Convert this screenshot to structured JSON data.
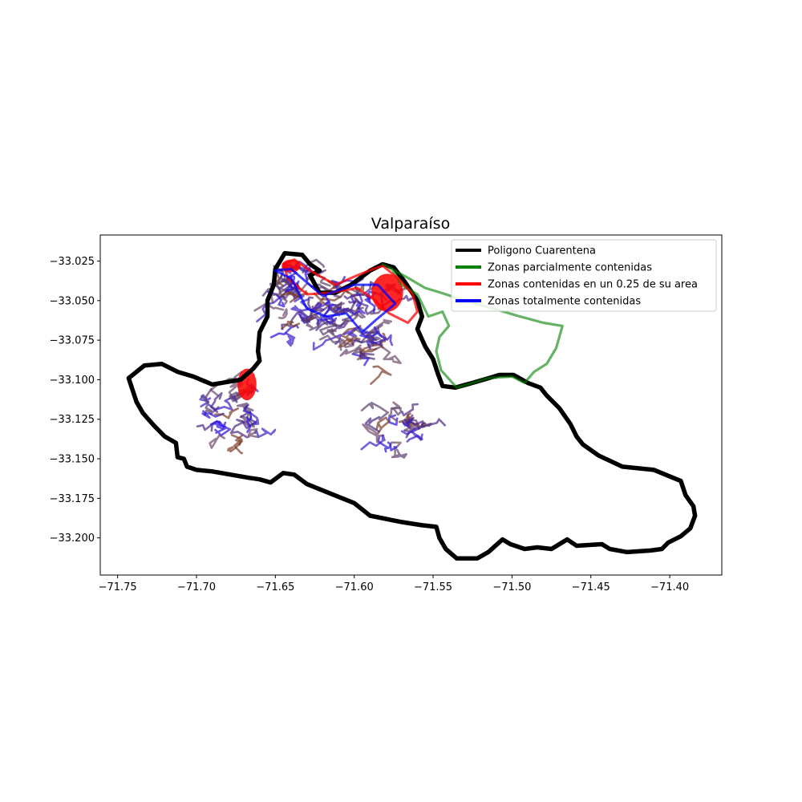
{
  "chart_data": {
    "type": "map",
    "title": "Valparaíso",
    "xlabel": "",
    "ylabel": "",
    "xlim": [
      -71.761,
      -71.367
    ],
    "ylim": [
      -33.2235,
      -33.0085
    ],
    "x_ticks": [
      -71.75,
      -71.7,
      -71.65,
      -71.6,
      -71.55,
      -71.5,
      -71.45,
      -71.4
    ],
    "x_tick_labels": [
      "−71.75",
      "−71.70",
      "−71.65",
      "−71.60",
      "−71.55",
      "−71.50",
      "−71.45",
      "−71.40"
    ],
    "y_ticks": [
      -33.025,
      -33.05,
      -33.075,
      -33.1,
      -33.125,
      -33.15,
      -33.175,
      -33.2
    ],
    "y_tick_labels": [
      "−33.025",
      "−33.050",
      "−33.075",
      "−33.100",
      "−33.125",
      "−33.150",
      "−33.175",
      "−33.200"
    ],
    "grid": false,
    "legend_position": "top-right",
    "legend": [
      {
        "label": "Poligono Cuarentena",
        "color": "#000000"
      },
      {
        "label": "Zonas parcialmente contenidas",
        "color": "#008000"
      },
      {
        "label": "Zonas contenidas en un 0.25 de su area",
        "color": "#ff0000"
      },
      {
        "label": "Zonas totalmente contenidas",
        "color": "#0000ff"
      }
    ],
    "series": [
      {
        "name": "Poligono Cuarentena",
        "color": "#000000",
        "points": [
          [
            -71.644,
            -33.02
          ],
          [
            -71.633,
            -33.021
          ],
          [
            -71.628,
            -33.027
          ],
          [
            -71.622,
            -33.031
          ],
          [
            -71.628,
            -33.034
          ],
          [
            -71.622,
            -33.045
          ],
          [
            -71.612,
            -33.045
          ],
          [
            -71.602,
            -33.04
          ],
          [
            -71.59,
            -33.031
          ],
          [
            -71.582,
            -33.027
          ],
          [
            -71.575,
            -33.029
          ],
          [
            -71.568,
            -33.038
          ],
          [
            -71.56,
            -33.05
          ],
          [
            -71.557,
            -33.06
          ],
          [
            -71.56,
            -33.068
          ],
          [
            -71.555,
            -33.079
          ],
          [
            -71.55,
            -33.087
          ],
          [
            -71.547,
            -33.096
          ],
          [
            -71.544,
            -33.104
          ],
          [
            -71.536,
            -33.105
          ],
          [
            -71.525,
            -33.102
          ],
          [
            -71.518,
            -33.1
          ],
          [
            -71.508,
            -33.097
          ],
          [
            -71.499,
            -33.097
          ],
          [
            -71.49,
            -33.102
          ],
          [
            -71.482,
            -33.105
          ],
          [
            -71.478,
            -33.11
          ],
          [
            -71.47,
            -33.118
          ],
          [
            -71.463,
            -33.128
          ],
          [
            -71.459,
            -33.136
          ],
          [
            -71.455,
            -33.141
          ],
          [
            -71.445,
            -33.148
          ],
          [
            -71.43,
            -33.155
          ],
          [
            -71.41,
            -33.157
          ],
          [
            -71.393,
            -33.164
          ],
          [
            -71.39,
            -33.173
          ],
          [
            -71.385,
            -33.18
          ],
          [
            -71.384,
            -33.186
          ],
          [
            -71.387,
            -33.194
          ],
          [
            -71.393,
            -33.199
          ],
          [
            -71.401,
            -33.203
          ],
          [
            -71.405,
            -33.207
          ],
          [
            -71.412,
            -33.208
          ],
          [
            -71.427,
            -33.209
          ],
          [
            -71.438,
            -33.207
          ],
          [
            -71.443,
            -33.204
          ],
          [
            -71.459,
            -33.205
          ],
          [
            -71.465,
            -33.201
          ],
          [
            -71.475,
            -33.207
          ],
          [
            -71.484,
            -33.206
          ],
          [
            -71.492,
            -33.207
          ],
          [
            -71.501,
            -33.204
          ],
          [
            -71.506,
            -33.201
          ],
          [
            -71.515,
            -33.209
          ],
          [
            -71.522,
            -33.213
          ],
          [
            -71.535,
            -33.213
          ],
          [
            -71.542,
            -33.207
          ],
          [
            -71.546,
            -33.2
          ],
          [
            -71.548,
            -33.193
          ],
          [
            -71.557,
            -33.192
          ],
          [
            -71.57,
            -33.19
          ],
          [
            -71.59,
            -33.186
          ],
          [
            -71.6,
            -33.178
          ],
          [
            -71.61,
            -33.174
          ],
          [
            -71.63,
            -33.166
          ],
          [
            -71.638,
            -33.16
          ],
          [
            -71.645,
            -33.159
          ],
          [
            -71.653,
            -33.165
          ],
          [
            -71.66,
            -33.163
          ],
          [
            -71.667,
            -33.162
          ],
          [
            -71.69,
            -33.158
          ],
          [
            -71.7,
            -33.157
          ],
          [
            -71.706,
            -33.155
          ],
          [
            -71.708,
            -33.15
          ],
          [
            -71.712,
            -33.149
          ],
          [
            -71.713,
            -33.14
          ],
          [
            -71.72,
            -33.136
          ],
          [
            -71.727,
            -33.129
          ],
          [
            -71.734,
            -33.121
          ],
          [
            -71.738,
            -33.114
          ],
          [
            -71.741,
            -33.105
          ],
          [
            -71.743,
            -33.099
          ],
          [
            -71.733,
            -33.091
          ],
          [
            -71.722,
            -33.09
          ],
          [
            -71.712,
            -33.095
          ],
          [
            -71.702,
            -33.098
          ],
          [
            -71.69,
            -33.103
          ],
          [
            -71.672,
            -33.1
          ],
          [
            -71.664,
            -33.093
          ],
          [
            -71.66,
            -33.088
          ],
          [
            -71.661,
            -33.082
          ],
          [
            -71.66,
            -33.07
          ],
          [
            -71.655,
            -33.06
          ],
          [
            -71.655,
            -33.05
          ],
          [
            -71.651,
            -33.04
          ],
          [
            -71.65,
            -33.03
          ],
          [
            -71.644,
            -33.02
          ]
        ]
      },
      {
        "name": "Zonas parcialmente contenidas",
        "color": "#008000",
        "points": [
          [
            -71.582,
            -33.027
          ],
          [
            -71.567,
            -33.035
          ],
          [
            -71.555,
            -33.042
          ],
          [
            -71.545,
            -33.045
          ],
          [
            -71.53,
            -33.05
          ],
          [
            -71.512,
            -33.055
          ],
          [
            -71.495,
            -33.06
          ],
          [
            -71.48,
            -33.064
          ],
          [
            -71.468,
            -33.066
          ],
          [
            -71.472,
            -33.08
          ],
          [
            -71.478,
            -33.09
          ],
          [
            -71.486,
            -33.095
          ],
          [
            -71.492,
            -33.102
          ],
          [
            -71.5,
            -33.098
          ],
          [
            -71.515,
            -33.099
          ],
          [
            -71.525,
            -33.102
          ],
          [
            -71.535,
            -33.105
          ],
          [
            -71.545,
            -33.094
          ],
          [
            -71.548,
            -33.082
          ],
          [
            -71.546,
            -33.073
          ],
          [
            -71.54,
            -33.066
          ],
          [
            -71.544,
            -33.057
          ],
          [
            -71.553,
            -33.06
          ],
          [
            -71.557,
            -33.052
          ],
          [
            -71.56,
            -33.046
          ],
          [
            -71.57,
            -33.04
          ],
          [
            -71.576,
            -33.03
          ],
          [
            -71.582,
            -33.027
          ]
        ]
      },
      {
        "name": "Zonas contenidas en un 0.25 de su area",
        "color": "#ff0000",
        "points": [
          [
            -71.582,
            -33.028
          ],
          [
            -71.572,
            -33.036
          ],
          [
            -71.563,
            -33.046
          ],
          [
            -71.56,
            -33.057
          ],
          [
            -71.566,
            -33.064
          ],
          [
            -71.578,
            -33.058
          ],
          [
            -71.588,
            -33.049
          ],
          [
            -71.598,
            -33.042
          ],
          [
            -71.615,
            -33.045
          ],
          [
            -71.63,
            -33.046
          ],
          [
            -71.642,
            -33.036
          ],
          [
            -71.645,
            -33.027
          ],
          [
            -71.638,
            -33.024
          ],
          [
            -71.628,
            -33.031
          ],
          [
            -71.612,
            -33.04
          ],
          [
            -71.598,
            -33.034
          ],
          [
            -71.588,
            -33.03
          ],
          [
            -71.582,
            -33.028
          ]
        ]
      },
      {
        "name": "Zonas totalmente contenidas",
        "color": "#0000ff",
        "points": [
          [
            -71.65,
            -33.031
          ],
          [
            -71.64,
            -33.036
          ],
          [
            -71.63,
            -33.055
          ],
          [
            -71.618,
            -33.06
          ],
          [
            -71.605,
            -33.058
          ],
          [
            -71.595,
            -33.07
          ],
          [
            -71.586,
            -33.062
          ],
          [
            -71.574,
            -33.052
          ],
          [
            -71.585,
            -33.04
          ],
          [
            -71.6,
            -33.04
          ],
          [
            -71.62,
            -33.047
          ],
          [
            -71.64,
            -33.03
          ],
          [
            -71.65,
            -33.031
          ]
        ]
      }
    ]
  }
}
